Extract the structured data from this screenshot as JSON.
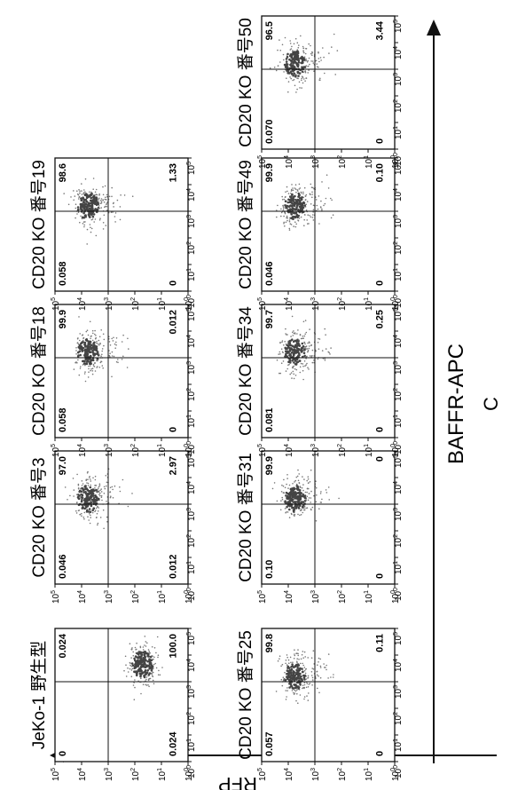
{
  "figure": {
    "x_axis_label": "BAFFR-APC",
    "y_axis_label": "RFP",
    "panel_letter": "C"
  },
  "chart_data": [
    {
      "type": "scatter",
      "title": "JeKo-1 野生型",
      "xlabel": "BAFFR-APC",
      "ylabel": "RFP",
      "x_scale": "log",
      "y_scale": "log",
      "xlim": [
        1,
        100000
      ],
      "ylim": [
        1,
        100000
      ],
      "x_ticks": [
        "10^0",
        "10^1",
        "10^2",
        "10^3",
        "10^4",
        "10^5"
      ],
      "y_ticks": [
        "10^0",
        "10^1",
        "10^2",
        "10^3",
        "10^4",
        "10^5"
      ],
      "quadrants": {
        "upper_left": "0",
        "upper_right": "0.024",
        "lower_left": "0.024",
        "lower_right": "100.0"
      }
    },
    {
      "type": "scatter",
      "title": "CD20 KO 番号3",
      "xlabel": "BAFFR-APC",
      "ylabel": "RFP",
      "x_scale": "log",
      "y_scale": "log",
      "xlim": [
        1,
        100000
      ],
      "ylim": [
        1,
        100000
      ],
      "x_ticks": [
        "10^0",
        "10^1",
        "10^2",
        "10^3",
        "10^4",
        "10^5"
      ],
      "y_ticks": [
        "10^0",
        "10^1",
        "10^2",
        "10^3",
        "10^4",
        "10^5"
      ],
      "quadrants": {
        "upper_left": "0.046",
        "upper_right": "97.0",
        "lower_left": "0.012",
        "lower_right": "2.97"
      }
    },
    {
      "type": "scatter",
      "title": "CD20 KO 番号18",
      "xlabel": "BAFFR-APC",
      "ylabel": "RFP",
      "x_scale": "log",
      "y_scale": "log",
      "xlim": [
        1,
        100000
      ],
      "ylim": [
        1,
        100000
      ],
      "x_ticks": [
        "10^0",
        "10^1",
        "10^2",
        "10^3",
        "10^4",
        "10^5"
      ],
      "y_ticks": [
        "10^0",
        "10^1",
        "10^2",
        "10^3",
        "10^4",
        "10^5"
      ],
      "quadrants": {
        "upper_left": "0.058",
        "upper_right": "99.9",
        "lower_left": "0",
        "lower_right": "0.012"
      }
    },
    {
      "type": "scatter",
      "title": "CD20 KO 番号19",
      "xlabel": "BAFFR-APC",
      "ylabel": "RFP",
      "x_scale": "log",
      "y_scale": "log",
      "xlim": [
        1,
        100000
      ],
      "ylim": [
        1,
        100000
      ],
      "x_ticks": [
        "10^0",
        "10^1",
        "10^2",
        "10^3",
        "10^4",
        "10^5"
      ],
      "y_ticks": [
        "10^0",
        "10^1",
        "10^2",
        "10^3",
        "10^4",
        "10^5"
      ],
      "quadrants": {
        "upper_left": "0.058",
        "upper_right": "98.6",
        "lower_left": "0",
        "lower_right": "1.33"
      }
    },
    {
      "type": "scatter",
      "title": "CD20 KO 番号25",
      "xlabel": "BAFFR-APC",
      "ylabel": "RFP",
      "x_scale": "log",
      "y_scale": "log",
      "xlim": [
        1,
        100000
      ],
      "ylim": [
        1,
        100000
      ],
      "x_ticks": [
        "10^0",
        "10^1",
        "10^2",
        "10^3",
        "10^4",
        "10^5"
      ],
      "y_ticks": [
        "10^0",
        "10^1",
        "10^2",
        "10^3",
        "10^4",
        "10^5"
      ],
      "quadrants": {
        "upper_left": "0.057",
        "upper_right": "99.8",
        "lower_left": "0",
        "lower_right": "0.11"
      }
    },
    {
      "type": "scatter",
      "title": "CD20 KO 番号31",
      "xlabel": "BAFFR-APC",
      "ylabel": "RFP",
      "x_scale": "log",
      "y_scale": "log",
      "xlim": [
        1,
        100000
      ],
      "ylim": [
        1,
        100000
      ],
      "x_ticks": [
        "10^0",
        "10^1",
        "10^2",
        "10^3",
        "10^4",
        "10^5"
      ],
      "y_ticks": [
        "10^0",
        "10^1",
        "10^2",
        "10^3",
        "10^4",
        "10^5"
      ],
      "quadrants": {
        "upper_left": "0.10",
        "upper_right": "99.9",
        "lower_left": "0",
        "lower_right": "0"
      }
    },
    {
      "type": "scatter",
      "title": "CD20 KO 番号34",
      "xlabel": "BAFFR-APC",
      "ylabel": "RFP",
      "x_scale": "log",
      "y_scale": "log",
      "xlim": [
        1,
        100000
      ],
      "ylim": [
        1,
        100000
      ],
      "x_ticks": [
        "10^0",
        "10^1",
        "10^2",
        "10^3",
        "10^4",
        "10^5"
      ],
      "y_ticks": [
        "10^0",
        "10^1",
        "10^2",
        "10^3",
        "10^4",
        "10^5"
      ],
      "quadrants": {
        "upper_left": "0.081",
        "upper_right": "99.7",
        "lower_left": "0",
        "lower_right": "0.25"
      }
    },
    {
      "type": "scatter",
      "title": "CD20 KO 番号49",
      "xlabel": "BAFFR-APC",
      "ylabel": "RFP",
      "x_scale": "log",
      "y_scale": "log",
      "xlim": [
        1,
        100000
      ],
      "ylim": [
        1,
        100000
      ],
      "x_ticks": [
        "10^0",
        "10^1",
        "10^2",
        "10^3",
        "10^4",
        "10^5"
      ],
      "y_ticks": [
        "10^0",
        "10^1",
        "10^2",
        "10^3",
        "10^4",
        "10^5"
      ],
      "quadrants": {
        "upper_left": "0.046",
        "upper_right": "99.9",
        "lower_left": "0",
        "lower_right": "0.10"
      }
    },
    {
      "type": "scatter",
      "title": "CD20 KO 番号50",
      "xlabel": "BAFFR-APC",
      "ylabel": "RFP",
      "x_scale": "log",
      "y_scale": "log",
      "xlim": [
        1,
        100000
      ],
      "ylim": [
        1,
        100000
      ],
      "x_ticks": [
        "10^0",
        "10^1",
        "10^2",
        "10^3",
        "10^4",
        "10^5"
      ],
      "y_ticks": [
        "10^0",
        "10^1",
        "10^2",
        "10^3",
        "10^4",
        "10^5"
      ],
      "quadrants": {
        "upper_left": "0.070",
        "upper_right": "96.5",
        "lower_left": "0",
        "lower_right": "3.44"
      }
    }
  ]
}
